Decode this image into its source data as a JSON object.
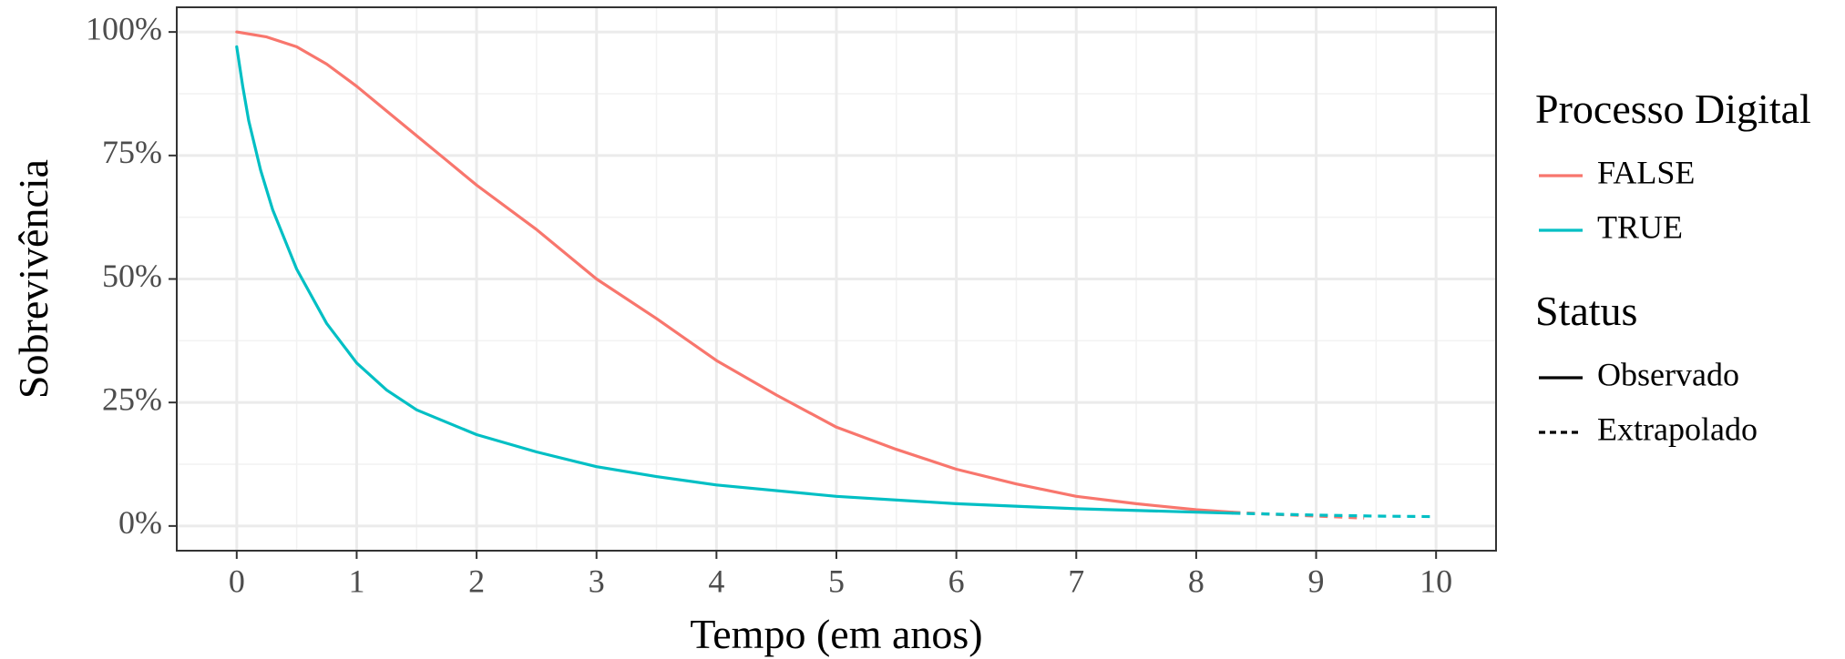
{
  "chart_data": {
    "type": "line",
    "xlabel": "Tempo (em anos)",
    "ylabel": "Sobrevivência",
    "xlim": [
      -0.5,
      10.5
    ],
    "ylim": [
      -0.05,
      1.05
    ],
    "x_ticks": [
      0,
      1,
      2,
      3,
      4,
      5,
      6,
      7,
      8,
      9,
      10
    ],
    "x_tick_labels": [
      "0",
      "1",
      "2",
      "3",
      "4",
      "5",
      "6",
      "7",
      "8",
      "9",
      "10"
    ],
    "y_ticks": [
      0,
      0.25,
      0.5,
      0.75,
      1.0
    ],
    "y_tick_labels": [
      "0%",
      "25%",
      "50%",
      "75%",
      "100%"
    ],
    "grid": true,
    "legend_position": "right",
    "legend_groups": [
      {
        "title": "Processo Digital",
        "entries": [
          {
            "label": "FALSE",
            "color": "#F8766D",
            "linestyle": "solid"
          },
          {
            "label": "TRUE",
            "color": "#00BFC4",
            "linestyle": "solid"
          }
        ]
      },
      {
        "title": "Status",
        "entries": [
          {
            "label": "Observado",
            "color": "#000000",
            "linestyle": "solid"
          },
          {
            "label": "Extrapolado",
            "color": "#000000",
            "linestyle": "dashed"
          }
        ]
      }
    ],
    "series": [
      {
        "name": "FALSE",
        "color": "#F8766D",
        "observed": {
          "x": [
            0,
            0.25,
            0.5,
            0.75,
            1.0,
            1.25,
            1.5,
            1.75,
            2.0,
            2.5,
            3.0,
            3.5,
            4.0,
            4.5,
            5.0,
            5.5,
            6.0,
            6.5,
            7.0,
            7.5,
            8.0,
            8.3
          ],
          "y": [
            1.0,
            0.99,
            0.97,
            0.935,
            0.89,
            0.84,
            0.79,
            0.74,
            0.69,
            0.6,
            0.5,
            0.42,
            0.335,
            0.265,
            0.2,
            0.155,
            0.115,
            0.085,
            0.06,
            0.045,
            0.033,
            0.028
          ]
        },
        "extrapolated": {
          "x": [
            8.3,
            8.6,
            9.0,
            9.4
          ],
          "y": [
            0.028,
            0.024,
            0.02,
            0.016
          ]
        }
      },
      {
        "name": "TRUE",
        "color": "#00BFC4",
        "observed": {
          "x": [
            0,
            0.05,
            0.1,
            0.2,
            0.3,
            0.5,
            0.75,
            1.0,
            1.25,
            1.5,
            2.0,
            2.5,
            3.0,
            3.5,
            4.0,
            5.0,
            6.0,
            7.0,
            8.0,
            8.3
          ],
          "y": [
            0.97,
            0.89,
            0.82,
            0.72,
            0.64,
            0.52,
            0.41,
            0.33,
            0.275,
            0.235,
            0.185,
            0.15,
            0.12,
            0.1,
            0.083,
            0.06,
            0.045,
            0.035,
            0.028,
            0.026
          ]
        },
        "extrapolated": {
          "x": [
            8.3,
            9.0,
            9.5,
            10.0
          ],
          "y": [
            0.026,
            0.022,
            0.02,
            0.019
          ]
        }
      }
    ]
  }
}
